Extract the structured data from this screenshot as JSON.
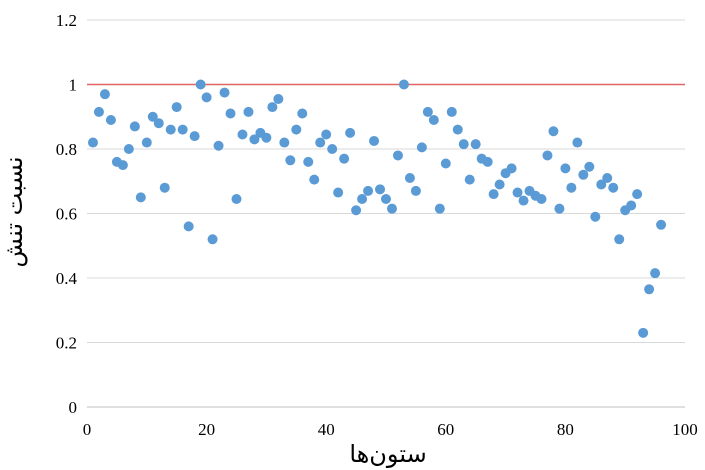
{
  "chart_data": {
    "type": "scatter",
    "title": "",
    "xlabel": "ستون‌ها",
    "ylabel": "نسبت تنش",
    "xlim": [
      0,
      100
    ],
    "ylim": [
      0,
      1.2
    ],
    "x_ticks": [
      "0",
      "20",
      "40",
      "60",
      "80",
      "100"
    ],
    "y_ticks": [
      "0",
      "0.2",
      "0.4",
      "0.6",
      "0.8",
      "1",
      "1.2"
    ],
    "grid": "horizontal",
    "legend": "none",
    "reference_line": {
      "y": 1.0,
      "color": "#e06666"
    },
    "marker_color": "#5b9bd5",
    "series": [
      {
        "x": [
          1,
          2,
          3,
          4,
          5,
          6,
          7,
          8,
          9,
          10,
          11,
          12,
          13,
          14,
          15,
          16,
          17,
          18,
          19,
          20,
          21,
          22,
          23,
          24,
          25,
          26,
          27,
          28,
          29,
          30,
          31,
          32,
          33,
          34,
          35,
          36,
          37,
          38,
          39,
          40,
          41,
          42,
          43,
          44,
          45,
          46,
          47,
          48,
          49,
          50,
          51,
          52,
          53,
          54,
          55,
          56,
          57,
          58,
          59,
          60,
          61,
          62,
          63,
          64,
          65,
          66,
          67,
          68,
          69,
          70,
          71,
          72,
          73,
          74,
          75,
          76,
          77,
          78,
          79,
          80,
          81,
          82,
          83,
          84,
          85,
          86,
          87,
          88,
          89,
          90,
          91,
          92,
          93,
          94,
          95,
          96
        ],
        "y": [
          0.82,
          0.915,
          0.97,
          0.89,
          0.76,
          0.75,
          0.8,
          0.87,
          0.65,
          0.82,
          0.9,
          0.88,
          0.68,
          0.86,
          0.93,
          0.86,
          0.56,
          0.84,
          1.0,
          0.96,
          0.52,
          0.81,
          0.975,
          0.91,
          0.645,
          0.845,
          0.915,
          0.83,
          0.85,
          0.835,
          0.93,
          0.955,
          0.82,
          0.765,
          0.86,
          0.91,
          0.76,
          0.705,
          0.82,
          0.845,
          0.8,
          0.665,
          0.77,
          0.85,
          0.61,
          0.645,
          0.67,
          0.825,
          0.675,
          0.645,
          0.615,
          0.78,
          1.0,
          0.71,
          0.67,
          0.805,
          0.915,
          0.89,
          0.615,
          0.755,
          0.915,
          0.86,
          0.815,
          0.705,
          0.815,
          0.77,
          0.76,
          0.66,
          0.69,
          0.725,
          0.74,
          0.665,
          0.64,
          0.67,
          0.655,
          0.645,
          0.78,
          0.855,
          0.615,
          0.74,
          0.68,
          0.82,
          0.72,
          0.745,
          0.59,
          0.69,
          0.71,
          0.68,
          0.52,
          0.61,
          0.625,
          0.66,
          0.23,
          0.365,
          0.415,
          0.565
        ]
      }
    ]
  }
}
